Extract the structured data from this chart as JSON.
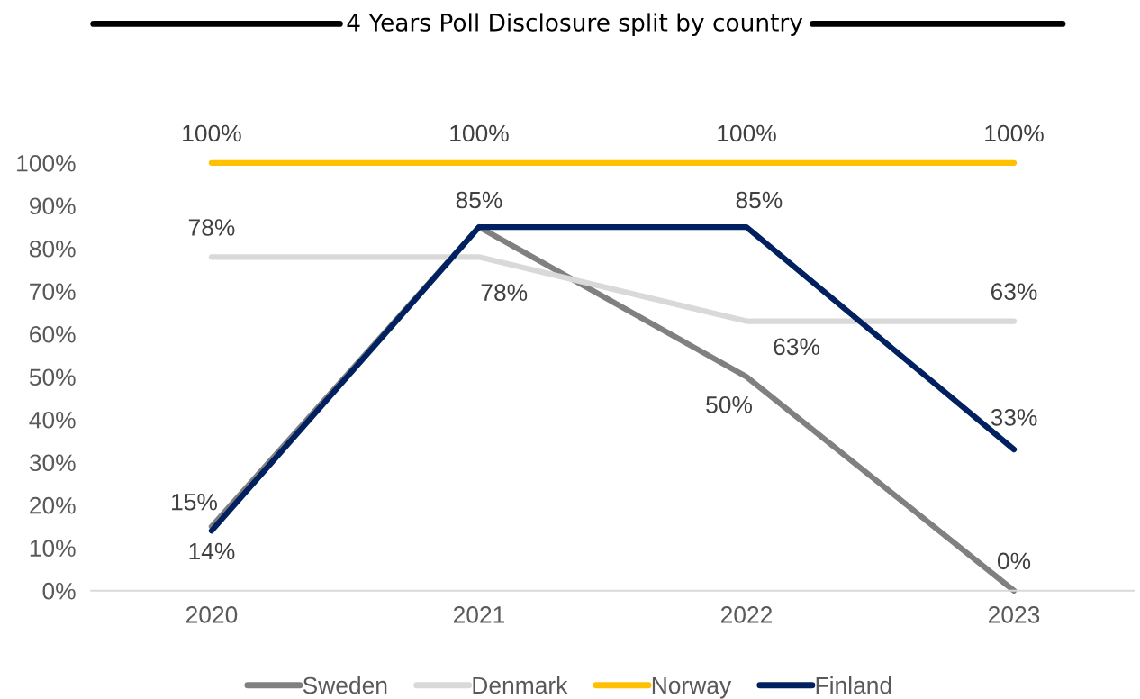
{
  "chart_data": {
    "type": "line",
    "title": "4 Years Poll Disclosure split by country",
    "categories": [
      "2020",
      "2021",
      "2022",
      "2023"
    ],
    "series": [
      {
        "name": "Sweden",
        "color": "#808080",
        "values": [
          15,
          85,
          50,
          0
        ],
        "value_labels": [
          "15%",
          null,
          "50%",
          "0%"
        ]
      },
      {
        "name": "Denmark",
        "color": "#d9d9d9",
        "values": [
          78,
          78,
          63,
          63
        ],
        "value_labels": [
          "78%",
          "78%",
          "63%",
          "63%"
        ]
      },
      {
        "name": "Norway",
        "color": "#ffc000",
        "values": [
          100,
          100,
          100,
          100
        ],
        "value_labels": [
          "100%",
          "100%",
          "100%",
          "100%"
        ]
      },
      {
        "name": "Finland",
        "color": "#002060",
        "values": [
          14,
          85,
          85,
          33
        ],
        "value_labels": [
          "14%",
          "85%",
          "85%",
          "33%"
        ]
      }
    ],
    "ylim": [
      0,
      100
    ],
    "yticks": [
      {
        "value": 0,
        "label": "0%"
      },
      {
        "value": 10,
        "label": "10%"
      },
      {
        "value": 20,
        "label": "20%"
      },
      {
        "value": 30,
        "label": "30%"
      },
      {
        "value": 40,
        "label": "40%"
      },
      {
        "value": 50,
        "label": "50%"
      },
      {
        "value": 60,
        "label": "60%"
      },
      {
        "value": 70,
        "label": "70%"
      },
      {
        "value": 80,
        "label": "80%"
      },
      {
        "value": 90,
        "label": "90%"
      },
      {
        "value": 100,
        "label": "100%"
      }
    ],
    "grid": false,
    "legend": "bottom",
    "marker": "none",
    "line_style": "solid"
  }
}
